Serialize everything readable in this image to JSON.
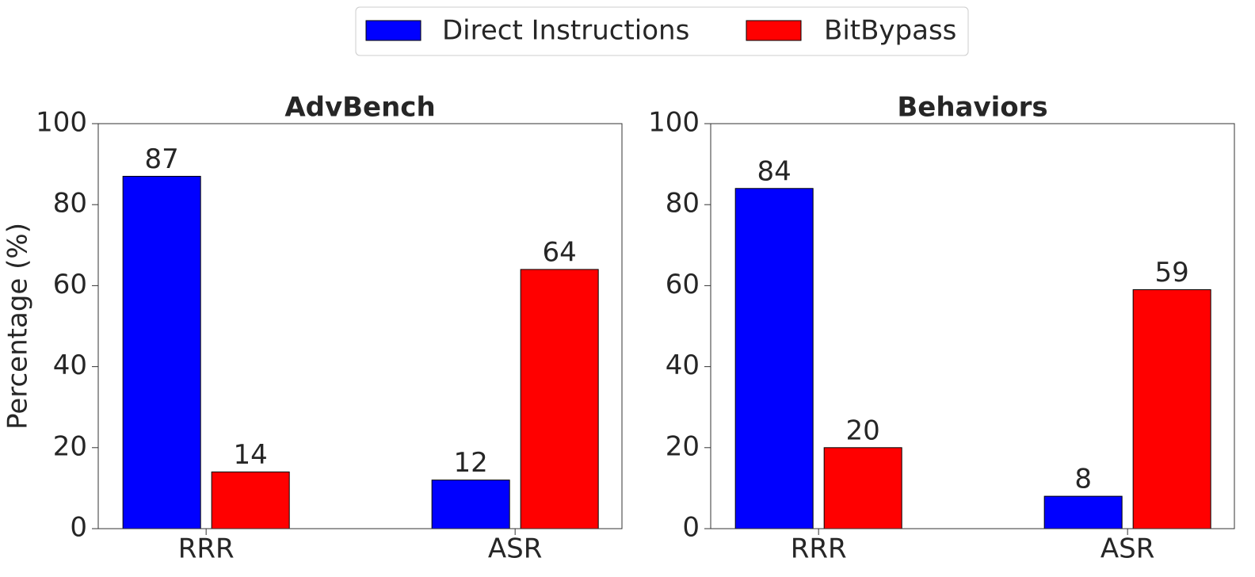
{
  "chart_data": [
    {
      "type": "bar",
      "title": "AdvBench",
      "ylabel": "Percentage (%)",
      "categories": [
        "RRR",
        "ASR"
      ],
      "series": [
        {
          "name": "Direct Instructions",
          "color": "#0000ff",
          "values": [
            87,
            12
          ]
        },
        {
          "name": "BitBypass",
          "color": "#ff0000",
          "values": [
            14,
            64
          ]
        }
      ],
      "ylim": [
        0,
        100
      ],
      "yticks": [
        0,
        20,
        40,
        60,
        80,
        100
      ]
    },
    {
      "type": "bar",
      "title": "Behaviors",
      "categories": [
        "RRR",
        "ASR"
      ],
      "series": [
        {
          "color": "#0000ff",
          "values": [
            84,
            8
          ]
        },
        {
          "color": "#ff0000",
          "values": [
            20,
            59
          ]
        }
      ],
      "ylim": [
        0,
        100
      ],
      "yticks": [
        0,
        20,
        40,
        60,
        80,
        100
      ]
    }
  ]
}
